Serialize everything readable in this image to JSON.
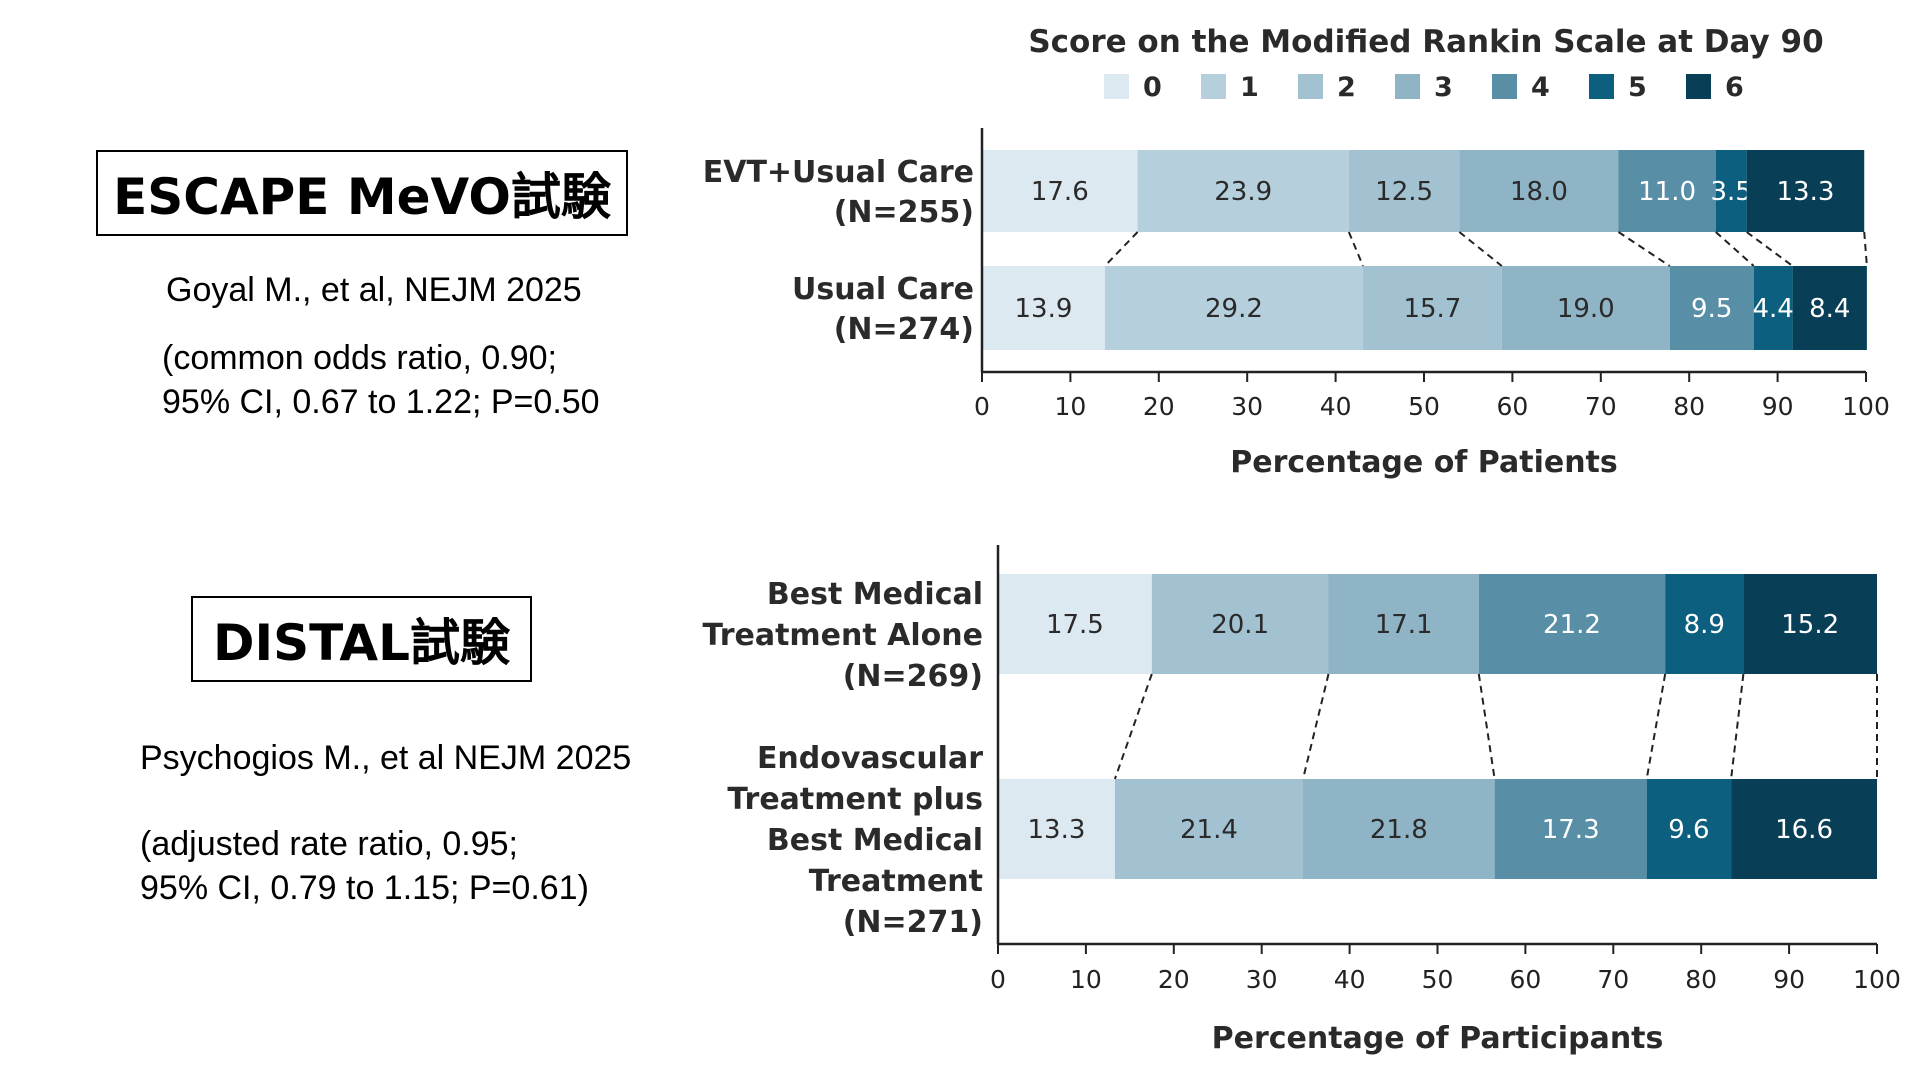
{
  "left_panel": {
    "trial1": {
      "title": "ESCAPE MeVO試験",
      "citation": "Goyal M., et al, NEJM 2025",
      "stats_line1": "(common odds ratio, 0.90;",
      "stats_line2": "95% CI, 0.67 to 1.22; P=0.50"
    },
    "trial2": {
      "title": "DISTAL試験",
      "citation": "Psychogios M., et al NEJM 2025",
      "stats_line1": "(adjusted rate ratio, 0.95;",
      "stats_line2": "95% CI, 0.79 to 1.15; P=0.61)"
    }
  },
  "colors": [
    "#dde9f0",
    "#b5cfdc",
    "#a2c2d2",
    "#8fb4c6",
    "#588fa6",
    "#0c5f7e",
    "#083e56"
  ],
  "chart_data": [
    {
      "type": "bar",
      "stacked": true,
      "orientation": "horizontal",
      "title": "Score on the Modified Rankin Scale at Day 90",
      "legend": [
        "0",
        "1",
        "2",
        "3",
        "4",
        "5",
        "6"
      ],
      "legend_position": "top",
      "xlabel": "Percentage of Patients",
      "xlim": [
        0,
        100
      ],
      "xticks": [
        "0",
        "10",
        "20",
        "30",
        "40",
        "50",
        "60",
        "70",
        "80",
        "90",
        "100"
      ],
      "rows": [
        {
          "label_lines": [
            "EVT+Usual Care",
            "(N=255)"
          ],
          "values": [
            17.6,
            23.9,
            12.5,
            18.0,
            11.0,
            3.5,
            13.3
          ],
          "value_labels": [
            "17.6",
            "23.9",
            "12.5",
            "18.0",
            "11.0",
            "3.5",
            "13.3"
          ]
        },
        {
          "label_lines": [
            "Usual Care",
            "(N=274)"
          ],
          "values": [
            13.9,
            29.2,
            15.7,
            19.0,
            9.5,
            4.4,
            8.4
          ],
          "value_labels": [
            "13.9",
            "29.2",
            "15.7",
            "19.0",
            "9.5",
            "4.4",
            "8.4"
          ]
        }
      ]
    },
    {
      "type": "bar",
      "stacked": true,
      "orientation": "horizontal",
      "xlabel": "Percentage of Participants",
      "xlim": [
        0,
        100
      ],
      "xticks": [
        "0",
        "10",
        "20",
        "30",
        "40",
        "50",
        "60",
        "70",
        "80",
        "90",
        "100"
      ],
      "rows": [
        {
          "label_lines": [
            "Best Medical",
            "Treatment Alone",
            "(N=269)"
          ],
          "values": [
            17.5,
            20.1,
            17.1,
            21.2,
            8.9,
            15.2
          ],
          "value_labels": [
            "17.5",
            "20.1",
            "17.1",
            "21.2",
            "8.9",
            "15.2"
          ]
        },
        {
          "label_lines": [
            "Endovascular",
            "Treatment plus",
            "Best Medical",
            "Treatment",
            "(N=271)"
          ],
          "values": [
            13.3,
            21.4,
            21.8,
            17.3,
            9.6,
            16.6
          ],
          "value_labels": [
            "13.3",
            "21.4",
            "21.8",
            "17.3",
            "9.6",
            "16.6"
          ]
        }
      ]
    }
  ]
}
